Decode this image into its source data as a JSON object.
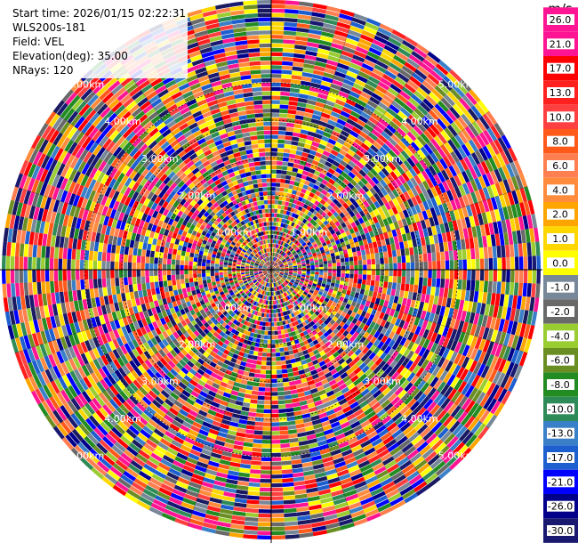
{
  "info": {
    "start_time": "Start time: 2026/01/15 02:22:31",
    "instrument": "WLS200s-181",
    "field": "Field: VEL",
    "elevation": "Elevation(deg): 35.00",
    "nrays": "NRays: 120"
  },
  "chart_data": {
    "type": "heatmap",
    "projection": "polar",
    "field": "VEL",
    "nrays": 120,
    "range_rings": [
      "1.00km",
      "2.00km",
      "3.00km",
      "4.00km",
      "5.00km"
    ],
    "colorbar": {
      "unit": "m/s",
      "ticks": [
        "26.0",
        "21.0",
        "17.0",
        "13.0",
        "10.0",
        "8.0",
        "6.0",
        "4.0",
        "2.0",
        "1.0",
        "0.0",
        "-1.0",
        "-2.0",
        "-4.0",
        "-6.0",
        "-8.0",
        "-10.0",
        "-13.0",
        "-17.0",
        "-21.0",
        "-26.0",
        "-30.0"
      ],
      "colors": [
        "#ff1493",
        "#ff1493",
        "#ff0000",
        "#ff2020",
        "#ff4040",
        "#ff5a1a",
        "#ff7f50",
        "#ff8c3c",
        "#ffa500",
        "#ffd700",
        "#ffff00",
        "#778899",
        "#696969",
        "#9acd32",
        "#6b8e23",
        "#228b22",
        "#2e8b57",
        "#3a80c8",
        "#1e5fcf",
        "#0000ff",
        "#00008b",
        "#191970",
        "#1a1a60"
      ]
    }
  }
}
